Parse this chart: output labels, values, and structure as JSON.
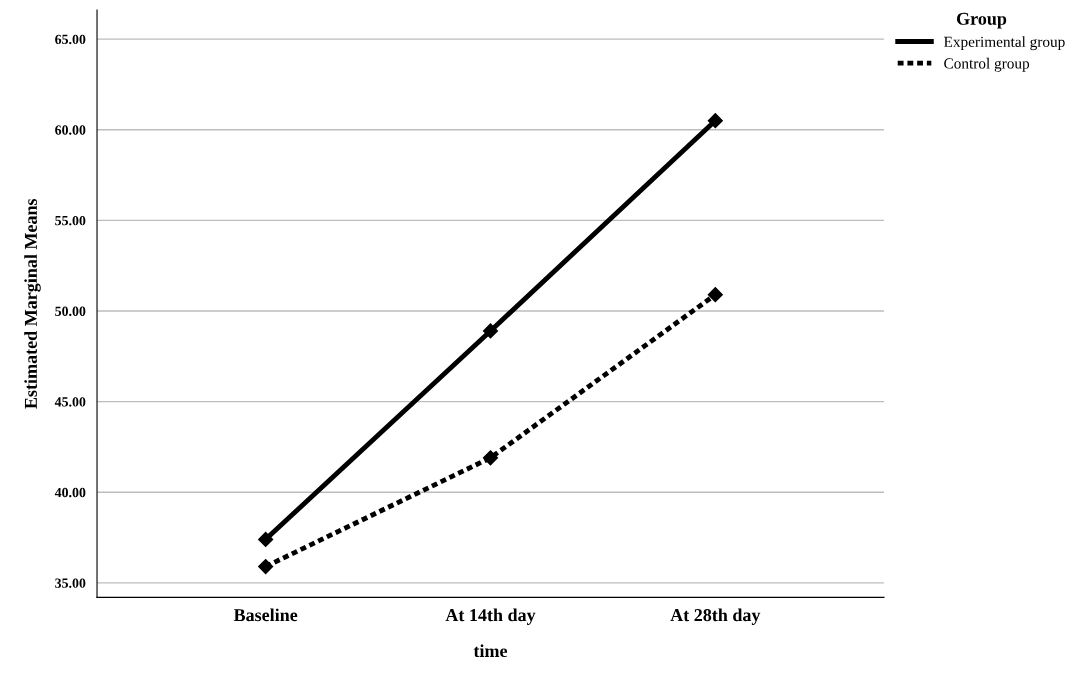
{
  "chart_data": {
    "type": "line",
    "xlabel": "time",
    "ylabel": "Estimated Marginal Means",
    "legend_title": "Group",
    "categories": [
      "Baseline",
      "At 14th day",
      "At 28th day"
    ],
    "series": [
      {
        "name": "Experimental group",
        "color": "#000000",
        "values": [
          37.4,
          48.9,
          60.5
        ],
        "line_style": "solid"
      },
      {
        "name": "Control group",
        "color": "#000000",
        "values": [
          35.9,
          41.9,
          50.9
        ],
        "line_style": "dotted"
      }
    ],
    "ylim": [
      34.2,
      66.6
    ],
    "yticks": [
      {
        "value": 35,
        "label": "35.00"
      },
      {
        "value": 40,
        "label": "40.00"
      },
      {
        "value": 45,
        "label": "45.00"
      },
      {
        "value": 50,
        "label": "50.00"
      },
      {
        "value": 55,
        "label": "55.00"
      },
      {
        "value": 60,
        "label": "60.00"
      },
      {
        "value": 65,
        "label": "65.00"
      }
    ],
    "grid": "y",
    "legend": "top right",
    "marker": "diamond"
  }
}
